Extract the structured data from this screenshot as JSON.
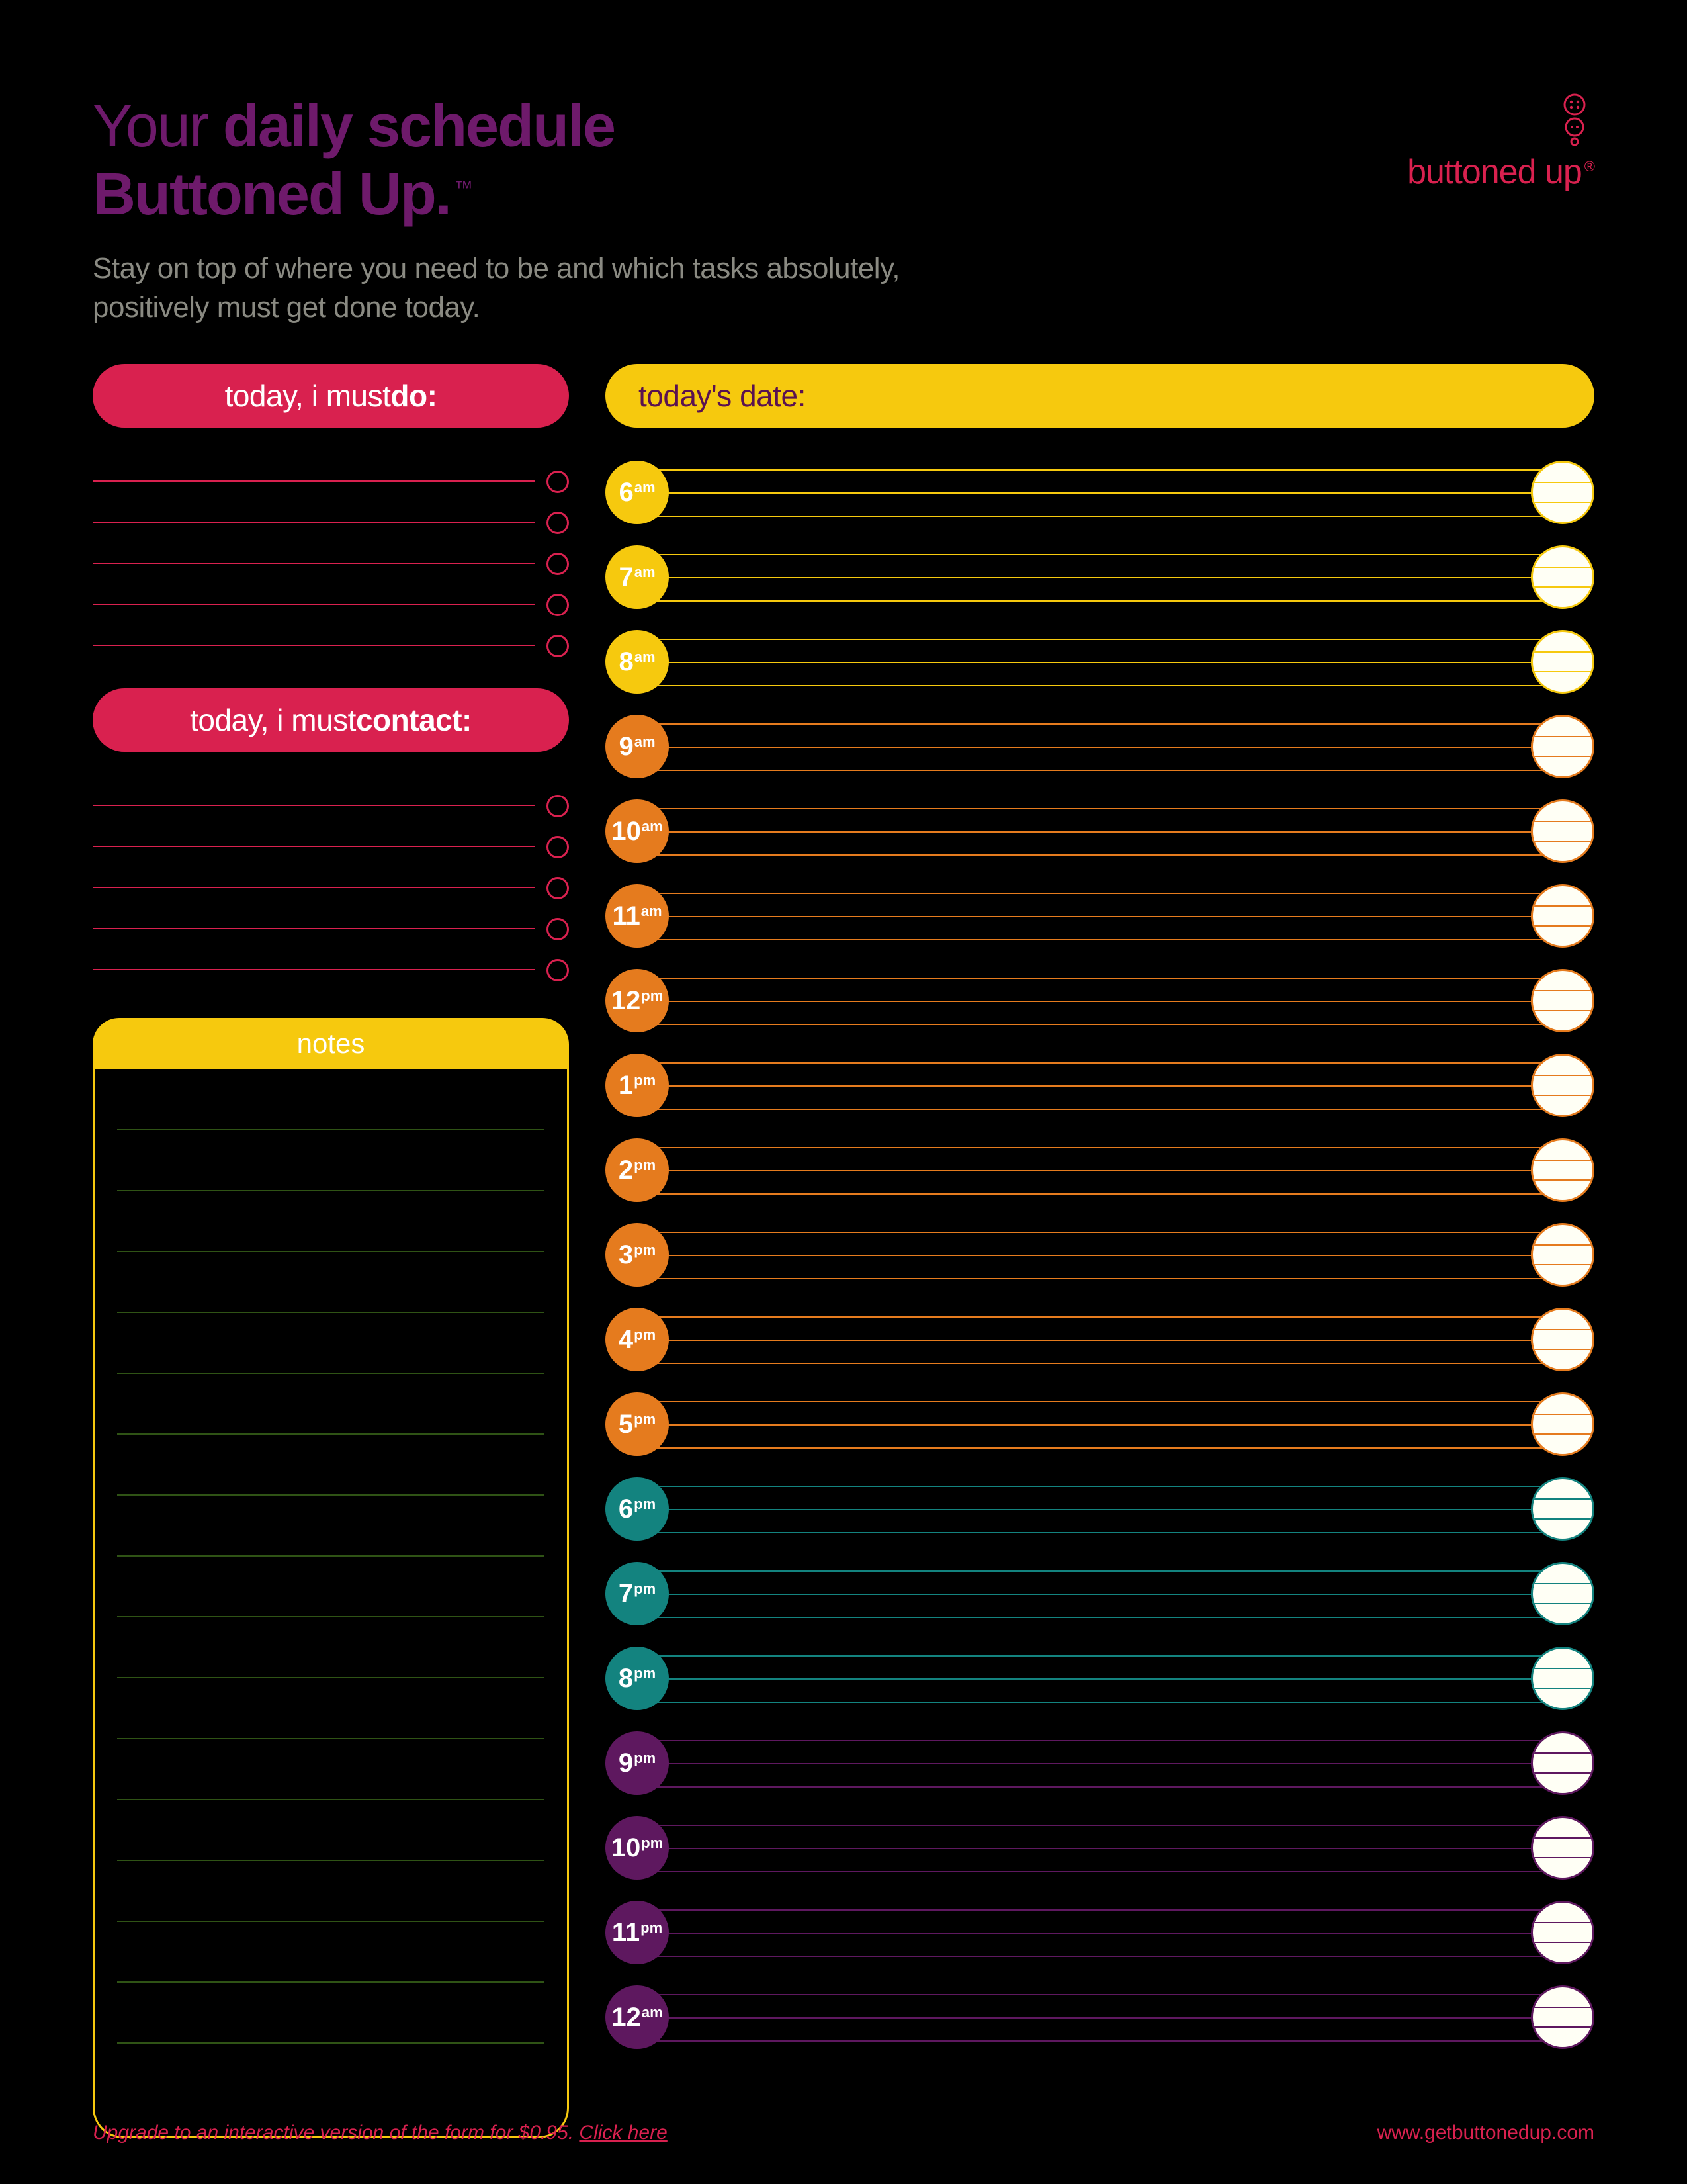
{
  "colors": {
    "page_bg": "#000000",
    "purple_title": "#6e1a6b",
    "subtitle_text": "#8a8a82",
    "brand_pink": "#d9214f",
    "pill_red": "#d9214f",
    "yellow": "#f6c90e",
    "yellow_text": "#5a1250",
    "orange": "#e57b1e",
    "teal": "#13837f",
    "deep_purple": "#5e185f",
    "notes_line": "#2f5315",
    "timeline_end_fill": "#fffff5",
    "footer_text": "#d9214f"
  },
  "header": {
    "title_prefix": "Your ",
    "title_bold": "daily schedule",
    "title_line2": "Buttoned Up.",
    "tm": "™",
    "subtitle": "Stay on top of where you need to be and which tasks absolutely, positively must get done today."
  },
  "brand": {
    "name": "buttoned up",
    "registered": "®"
  },
  "date_pill": {
    "label": "today's date:"
  },
  "do_section": {
    "prefix": "today, i must ",
    "bold": "do:",
    "rows": 5,
    "line_color": "#d9214f",
    "circle_color": "#d9214f"
  },
  "contact_section": {
    "prefix": "today, i must ",
    "bold": "contact:",
    "rows": 5,
    "line_color": "#d9214f",
    "circle_color": "#d9214f"
  },
  "notes": {
    "label": "notes",
    "header_bg": "#f6c90e",
    "border_color": "#f6c90e",
    "line_color": "#2f5315",
    "rows": 17
  },
  "timeline": {
    "end_circle_fill": "#fffff5",
    "end_mini_line_offsets": [
      0.33,
      0.66
    ],
    "line_offsets": [
      0,
      0.5,
      1
    ],
    "slots": [
      {
        "hour": "6",
        "ampm": "am",
        "color": "#f6c90e"
      },
      {
        "hour": "7",
        "ampm": "am",
        "color": "#f6c90e"
      },
      {
        "hour": "8",
        "ampm": "am",
        "color": "#f6c90e"
      },
      {
        "hour": "9",
        "ampm": "am",
        "color": "#e57b1e"
      },
      {
        "hour": "10",
        "ampm": "am",
        "color": "#e57b1e"
      },
      {
        "hour": "11",
        "ampm": "am",
        "color": "#e57b1e"
      },
      {
        "hour": "12",
        "ampm": "pm",
        "color": "#e57b1e"
      },
      {
        "hour": "1",
        "ampm": "pm",
        "color": "#e57b1e"
      },
      {
        "hour": "2",
        "ampm": "pm",
        "color": "#e57b1e"
      },
      {
        "hour": "3",
        "ampm": "pm",
        "color": "#e57b1e"
      },
      {
        "hour": "4",
        "ampm": "pm",
        "color": "#e57b1e"
      },
      {
        "hour": "5",
        "ampm": "pm",
        "color": "#e57b1e"
      },
      {
        "hour": "6",
        "ampm": "pm",
        "color": "#13837f"
      },
      {
        "hour": "7",
        "ampm": "pm",
        "color": "#13837f"
      },
      {
        "hour": "8",
        "ampm": "pm",
        "color": "#13837f"
      },
      {
        "hour": "9",
        "ampm": "pm",
        "color": "#5e185f"
      },
      {
        "hour": "10",
        "ampm": "pm",
        "color": "#5e185f"
      },
      {
        "hour": "11",
        "ampm": "pm",
        "color": "#5e185f"
      },
      {
        "hour": "12",
        "ampm": "am",
        "color": "#5e185f"
      }
    ]
  },
  "footer": {
    "left_prefix": "Upgrade to an interactive version of the form for $0.95. ",
    "left_link": "Click here",
    "right": "www.getbuttonedup.com"
  }
}
